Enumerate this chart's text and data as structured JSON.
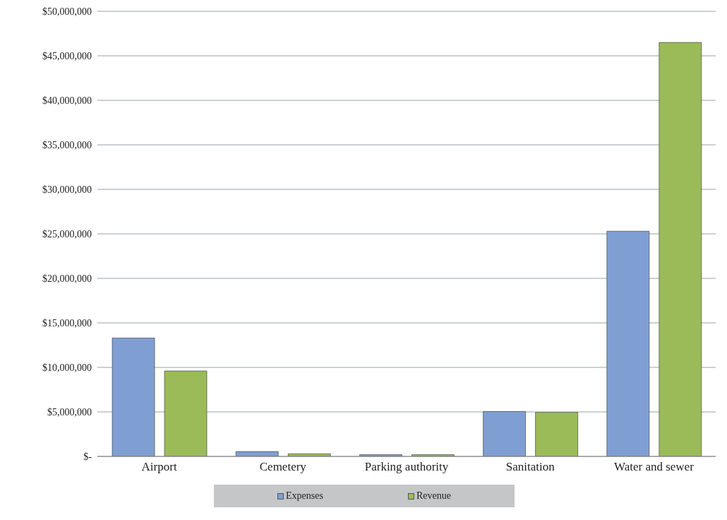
{
  "chart_data": {
    "type": "bar",
    "categories": [
      "Airport",
      "Cemetery",
      "Parking authority",
      "Sanitation",
      "Water and sewer"
    ],
    "series": [
      {
        "name": "Expenses",
        "color": "#7f9fd3",
        "values": [
          13300000,
          550000,
          200000,
          5050000,
          25300000
        ]
      },
      {
        "name": "Revenue",
        "color": "#9bbb59",
        "values": [
          9600000,
          300000,
          200000,
          4950000,
          46500000
        ]
      }
    ],
    "ylim": [
      0,
      50000000
    ],
    "yticks": [
      {
        "value": 0,
        "label": "$-"
      },
      {
        "value": 5000000,
        "label": "$5,000,000"
      },
      {
        "value": 10000000,
        "label": "$10,000,000"
      },
      {
        "value": 15000000,
        "label": "$15,000,000"
      },
      {
        "value": 20000000,
        "label": "$20,000,000"
      },
      {
        "value": 25000000,
        "label": "$25,000,000"
      },
      {
        "value": 30000000,
        "label": "$30,000,000"
      },
      {
        "value": 35000000,
        "label": "$35,000,000"
      },
      {
        "value": 40000000,
        "label": "$40,000,000"
      },
      {
        "value": 45000000,
        "label": "$45,000,000"
      },
      {
        "value": 50000000,
        "label": "$50,000,000"
      }
    ],
    "grid": "y",
    "legend": "bottom"
  }
}
